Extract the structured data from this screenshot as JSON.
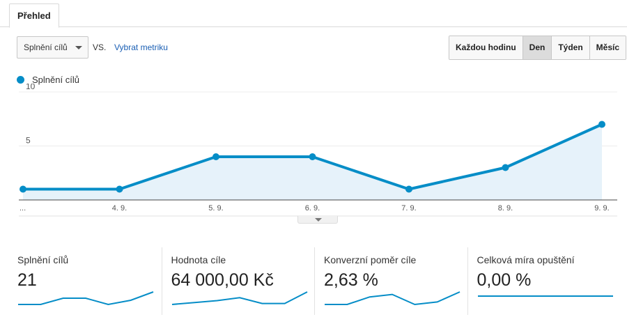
{
  "tabs": [
    {
      "label": "Přehled"
    }
  ],
  "controls": {
    "metric": "Splnění cílů",
    "vs": "VS.",
    "pick_metric": "Vybrat metriku",
    "granularity": [
      {
        "label": "Každou hodinu",
        "active": false
      },
      {
        "label": "Den",
        "active": true
      },
      {
        "label": "Týden",
        "active": false
      },
      {
        "label": "Měsíc",
        "active": false
      }
    ]
  },
  "legend": {
    "label": "Splnění cílů",
    "color": "#058dc7"
  },
  "chart_data": {
    "type": "area",
    "x_tick_labels": [
      "...",
      "4. 9.",
      "5. 9.",
      "6. 9.",
      "7. 9.",
      "8. 9.",
      "9. 9."
    ],
    "series": [
      {
        "name": "Splnění cílů",
        "values": [
          1,
          1,
          4,
          4,
          1,
          3,
          7
        ]
      }
    ],
    "y_ticks": [
      5,
      10
    ],
    "ylim": [
      0,
      10
    ],
    "grid": true,
    "line_color": "#058dc7",
    "fill_color": "#e6f2fa"
  },
  "scorecards": [
    {
      "title": "Splnění cílů",
      "value": "21",
      "spark": [
        1,
        1,
        4,
        4,
        1,
        3,
        7
      ]
    },
    {
      "title": "Hodnota cíle",
      "value": "64 000,00 Kč",
      "spark": [
        0.5,
        1.5,
        2.5,
        4,
        1,
        1,
        7
      ]
    },
    {
      "title": "Konverzní poměr cíle",
      "value": "2,63 %",
      "spark": [
        1,
        1,
        4,
        5,
        1,
        2,
        6
      ]
    },
    {
      "title": "Celková míra opuštění",
      "value": "0,00 %",
      "spark": [
        0,
        0,
        0,
        0,
        0,
        0,
        0
      ]
    }
  ]
}
